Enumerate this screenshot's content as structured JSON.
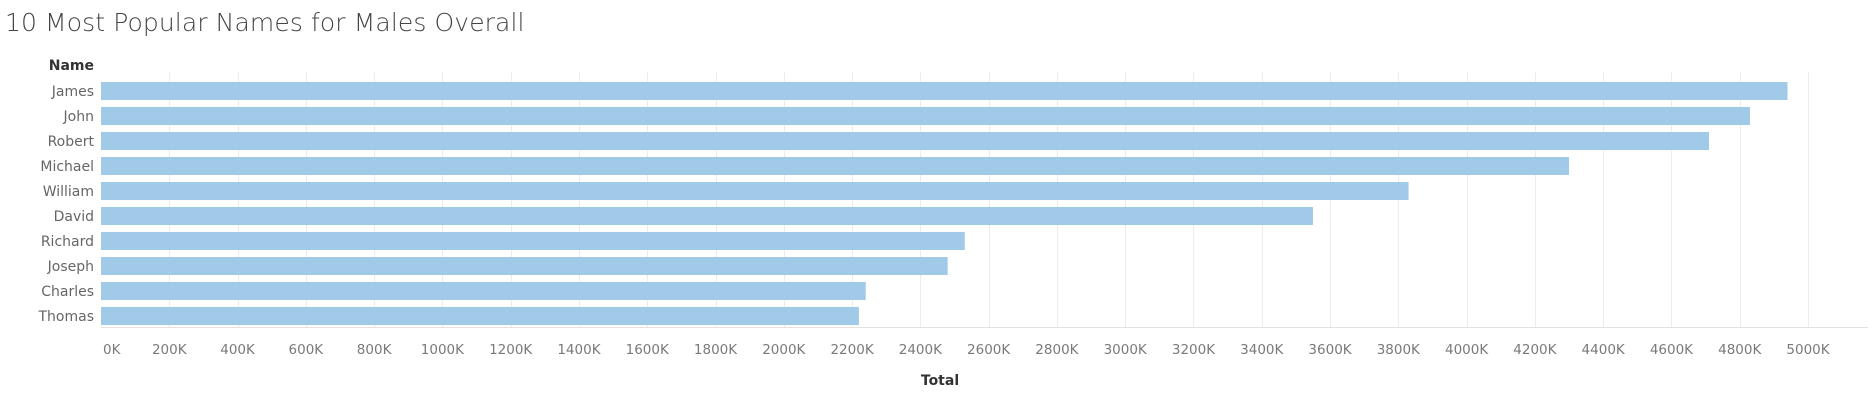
{
  "title": "10 Most Popular Names for Males Overall",
  "colors": {
    "bar": "#a1cae8",
    "grid": "#ececec",
    "axis_text": "#7a7a7a",
    "title": "#444444"
  },
  "chart_data": {
    "type": "bar",
    "orientation": "horizontal",
    "title": "10 Most Popular Names for Males Overall",
    "row_header": "Name",
    "xlabel": "Total",
    "ylabel": "Name",
    "xlim": [
      0,
      5400000
    ],
    "grid": true,
    "categories": [
      "James",
      "John",
      "Robert",
      "Michael",
      "William",
      "David",
      "Richard",
      "Joseph",
      "Charles",
      "Thomas"
    ],
    "values": [
      4940000,
      4830000,
      4710000,
      4300000,
      3830000,
      3550000,
      2530000,
      2480000,
      2240000,
      2220000
    ],
    "ticks": [
      0,
      200000,
      400000,
      600000,
      800000,
      1000000,
      1200000,
      1400000,
      1600000,
      1800000,
      2000000,
      2200000,
      2400000,
      2600000,
      2800000,
      3000000,
      3200000,
      3400000,
      3600000,
      3800000,
      4000000,
      4200000,
      4400000,
      4600000,
      4800000,
      5000000
    ],
    "tick_labels": [
      "0K",
      "200K",
      "400K",
      "600K",
      "800K",
      "1000K",
      "1200K",
      "1400K",
      "1600K",
      "1800K",
      "2000K",
      "2200K",
      "2400K",
      "2600K",
      "2800K",
      "3000K",
      "3200K",
      "3400K",
      "3600K",
      "3800K",
      "4000K",
      "4200K",
      "4400K",
      "4600K",
      "4800K",
      "5000K"
    ]
  }
}
